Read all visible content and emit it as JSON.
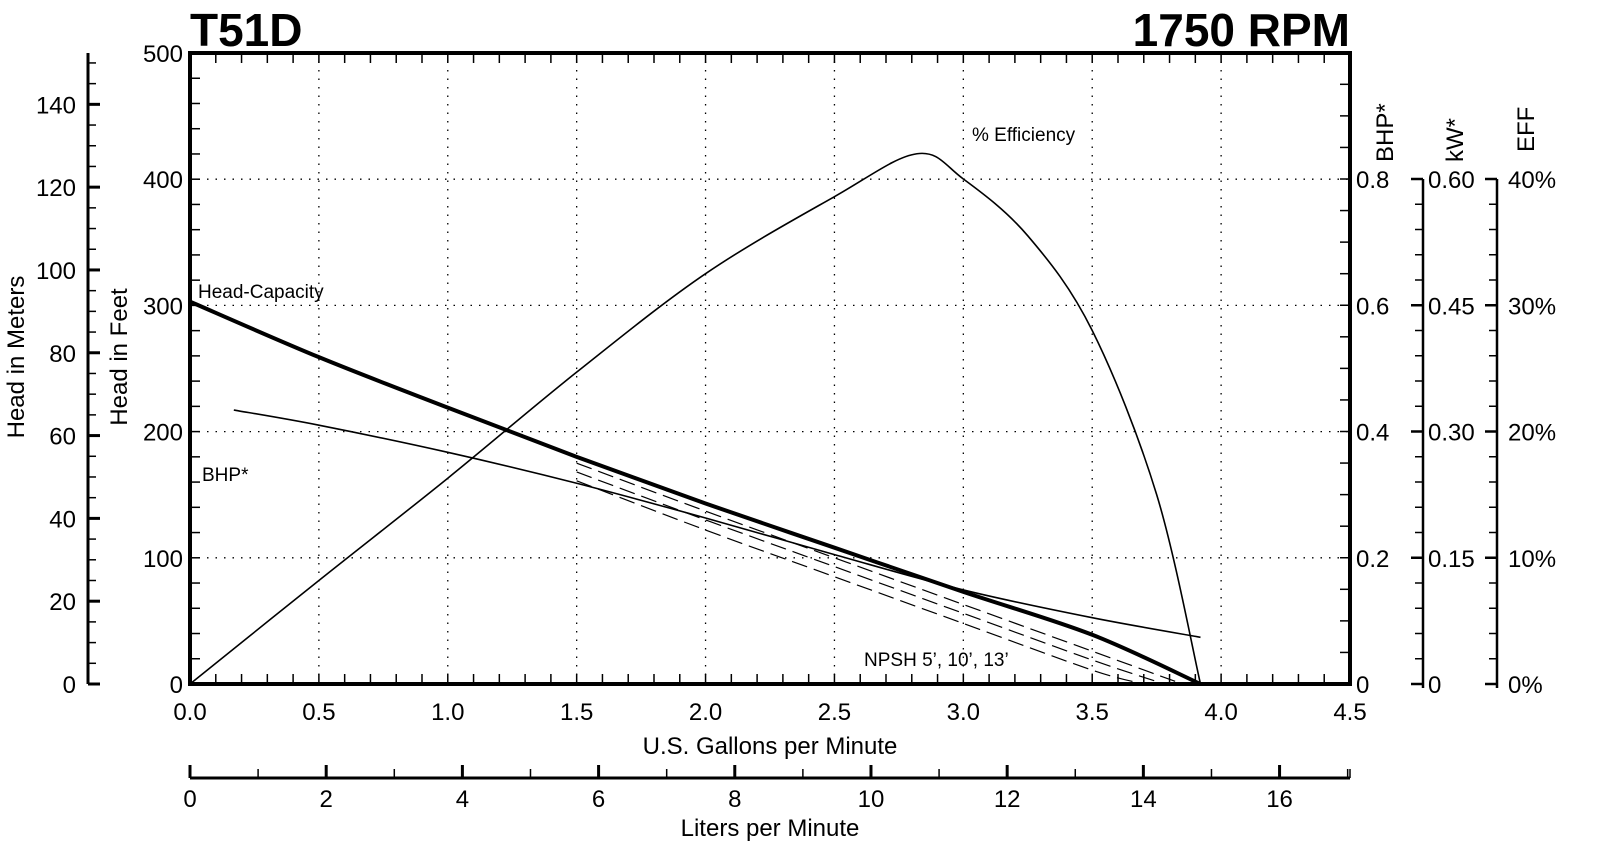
{
  "header": {
    "model": "T51D",
    "speed": "1750 RPM"
  },
  "axes": {
    "x_primary_label": "U.S. Gallons per Minute",
    "x_secondary_label": "Liters per Minute",
    "y_feet_label": "Head in Feet",
    "y_meters_label": "Head in Meters",
    "bhp_label": "BHP*",
    "kw_label": "kW*",
    "eff_label": "EFF"
  },
  "annotations": {
    "head_capacity": "Head-Capacity",
    "bhp": "BHP*",
    "efficiency": "% Efficiency",
    "npsh": "NPSH 5’, 10’, 13’"
  },
  "chart_data": {
    "type": "line",
    "title": "T51D 1750 RPM",
    "xlabel": "U.S. Gallons per Minute",
    "ylabel": "Head in Feet",
    "xlim": [
      0,
      4.5
    ],
    "ylim": [
      0,
      500
    ],
    "grid": true,
    "x_ticks": [
      "0.0",
      "0.5",
      "1.0",
      "1.5",
      "2.0",
      "2.5",
      "3.0",
      "3.5",
      "4.0",
      "4.5"
    ],
    "y_ticks_feet": [
      "0",
      "100",
      "200",
      "300",
      "400",
      "500"
    ],
    "y_ticks_meters": [
      "0",
      "20",
      "40",
      "60",
      "80",
      "100",
      "120",
      "140"
    ],
    "x_ticks_lpm": [
      "0",
      "2",
      "4",
      "6",
      "8",
      "10",
      "12",
      "14",
      "16"
    ],
    "bhp_ticks": [
      "0",
      "0.2",
      "0.4",
      "0.6",
      "0.8"
    ],
    "kw_ticks": [
      "0",
      "0.15",
      "0.30",
      "0.45",
      "0.60"
    ],
    "eff_ticks": [
      "0%",
      "10%",
      "20%",
      "30%",
      "40%"
    ],
    "series": [
      {
        "name": "Head-Capacity (ft)",
        "axis": "feet",
        "style": "thick",
        "x": [
          0.0,
          0.5,
          1.0,
          1.5,
          2.0,
          2.5,
          3.0,
          3.5,
          3.92
        ],
        "y": [
          303,
          259,
          219,
          180,
          143,
          108,
          73,
          39,
          0
        ]
      },
      {
        "name": "BHP*",
        "axis": "bhp",
        "style": "thin",
        "x": [
          0.17,
          0.5,
          1.0,
          1.5,
          2.0,
          2.5,
          3.0,
          3.5,
          3.92
        ],
        "y": [
          0.434,
          0.41,
          0.367,
          0.318,
          0.263,
          0.205,
          0.149,
          0.105,
          0.074
        ]
      },
      {
        "name": "% Efficiency",
        "axis": "eff",
        "style": "thin",
        "x": [
          0.0,
          0.5,
          1.0,
          1.5,
          2.0,
          2.5,
          2.82,
          3.0,
          3.25,
          3.5,
          3.75,
          3.92
        ],
        "y": [
          0,
          8.2,
          16.3,
          24.7,
          32.5,
          38.6,
          42.0,
          40.0,
          35.5,
          28.0,
          15.0,
          0
        ]
      },
      {
        "name": "NPSH 5'",
        "axis": "feet",
        "style": "dashed",
        "x": [
          1.5,
          2.0,
          2.5,
          3.0,
          3.5,
          3.85
        ],
        "y": [
          175,
          137,
          100,
          63,
          26,
          0
        ]
      },
      {
        "name": "NPSH 10'",
        "axis": "feet",
        "style": "dashed",
        "x": [
          1.5,
          2.0,
          2.5,
          3.0,
          3.5,
          3.78
        ],
        "y": [
          168,
          130,
          93,
          56,
          19,
          0
        ]
      },
      {
        "name": "NPSH 13'",
        "axis": "feet",
        "style": "dashed",
        "x": [
          1.5,
          2.0,
          2.5,
          3.0,
          3.5,
          3.7
        ],
        "y": [
          161,
          122,
          85,
          48,
          11,
          0
        ]
      }
    ]
  }
}
